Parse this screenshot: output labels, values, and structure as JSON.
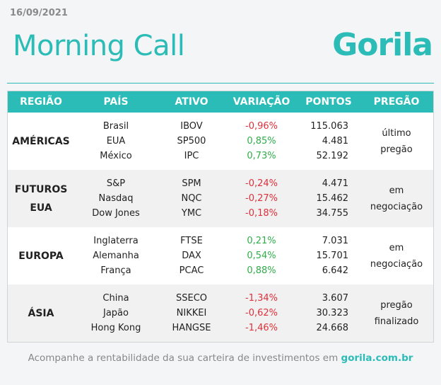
{
  "header": {
    "date": "16/09/2021",
    "title": "Morning Call",
    "logo": "Gorila"
  },
  "table": {
    "columns": [
      "REGIÃO",
      "PAÍS",
      "ATIVO",
      "VARIAÇÃO",
      "PONTOS",
      "PREGÃO"
    ],
    "groups": [
      {
        "region": "AMÉRICAS",
        "status": "último pregão",
        "rows": [
          [
            "Brasil",
            "IBOV",
            "-0,96%",
            "115.063"
          ],
          [
            "EUA",
            "SP500",
            "0,85%",
            "4.481"
          ],
          [
            "México",
            "IPC",
            "0,73%",
            "52.192"
          ]
        ]
      },
      {
        "region": "FUTUROS EUA",
        "status": "em negociação",
        "rows": [
          [
            "S&P",
            "SPM",
            "-0,24%",
            "4.471"
          ],
          [
            "Nasdaq",
            "NQC",
            "-0,27%",
            "15.462"
          ],
          [
            "Dow Jones",
            "YMC",
            "-0,18%",
            "34.755"
          ]
        ]
      },
      {
        "region": "EUROPA",
        "status": "em negociação",
        "rows": [
          [
            "Inglaterra",
            "FTSE",
            "0,21%",
            "7.031"
          ],
          [
            "Alemanha",
            "DAX",
            "0,54%",
            "15.701"
          ],
          [
            "França",
            "PCAC",
            "0,88%",
            "6.642"
          ]
        ]
      },
      {
        "region": "ÁSIA",
        "status": "pregão finalizado",
        "rows": [
          [
            "China",
            "SSECO",
            "-1,34%",
            "3.607"
          ],
          [
            "Japão",
            "NIKKEI",
            "-0,62%",
            "30.323"
          ],
          [
            "Hong Kong",
            "HANGSE",
            "-1,46%",
            "24.668"
          ]
        ]
      }
    ]
  },
  "footer": {
    "text": "Acompanhe a rentabilidade da sua carteira de investimentos em",
    "link": "gorila.com.br"
  }
}
